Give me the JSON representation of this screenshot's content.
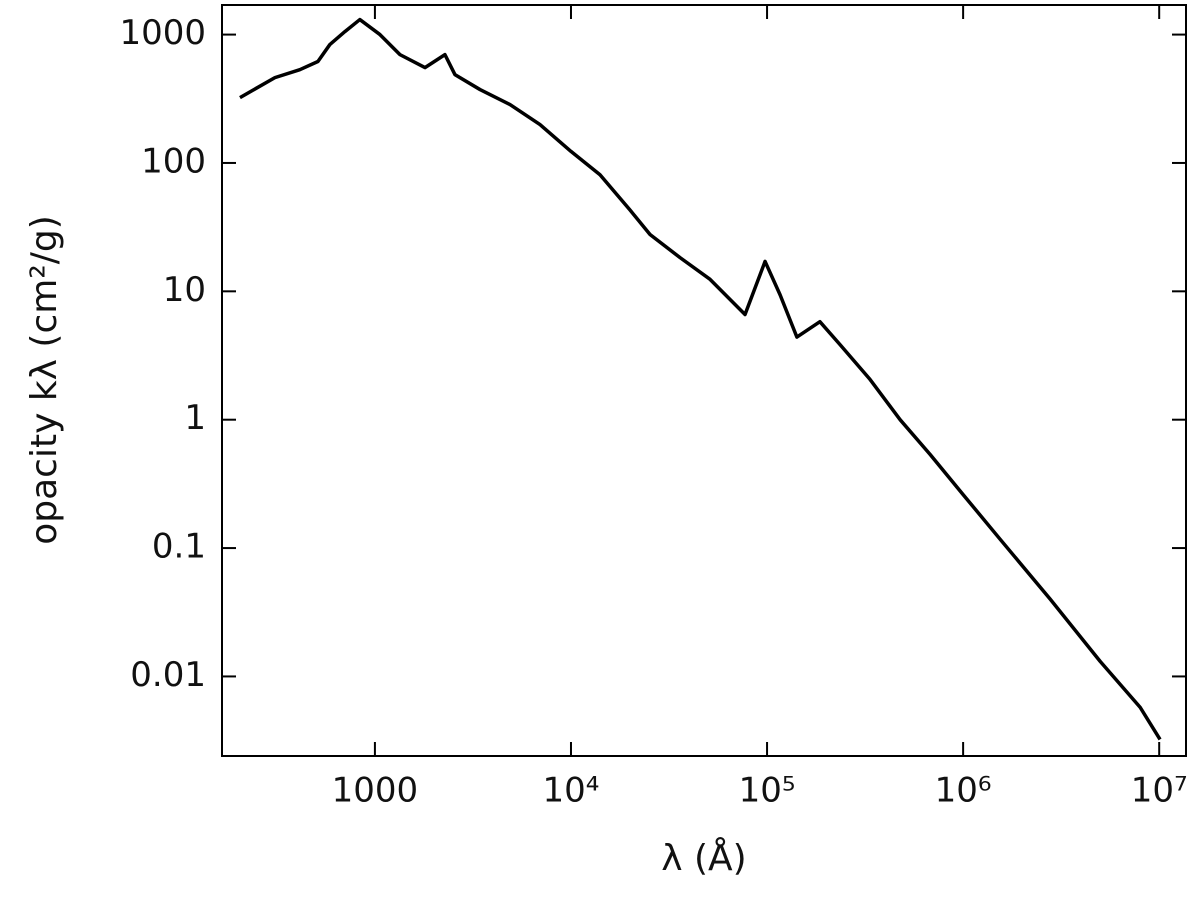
{
  "chart_data": {
    "type": "line",
    "xlabel": "λ (Å)",
    "ylabel": "opacity kλ (cm²/g)",
    "xscale": "log",
    "yscale": "log",
    "xlim": [
      166,
      13700000
    ],
    "ylim": [
      0.0024,
      1700
    ],
    "xticks": [
      1000,
      {
        "value": 10000,
        "label": "10⁴"
      },
      {
        "value": 100000,
        "label": "10⁵"
      },
      {
        "value": 1000000,
        "label": "10⁶"
      },
      {
        "value": 10000000,
        "label": "10⁷"
      }
    ],
    "yticks": [
      1000,
      100,
      10,
      1,
      0.1,
      0.01
    ],
    "grid": false,
    "series": [
      {
        "color": "#000000",
        "x": [
          205,
          309,
          414,
          512,
          589,
          703,
          838,
          1061,
          1342,
          1800,
          2276,
          2559,
          3436,
          4887,
          6950,
          10000,
          14060,
          20000,
          25300,
          36000,
          51200,
          77200,
          97700,
          116500,
          142000,
          186000,
          235000,
          335000,
          477000,
          679000,
          1000000,
          1545000,
          2780000,
          5000000,
          8000000,
          10100000
        ],
        "values": [
          323,
          462,
          533,
          617,
          836,
          1055,
          1309,
          1000,
          698,
          553,
          698,
          488,
          373,
          285,
          199,
          123,
          81,
          43,
          27.7,
          18.3,
          12.4,
          6.6,
          17.1,
          9.4,
          4.4,
          5.8,
          3.86,
          2.06,
          1.0,
          0.536,
          0.261,
          0.117,
          0.04,
          0.0131,
          0.00574,
          0.00323
        ]
      }
    ]
  }
}
